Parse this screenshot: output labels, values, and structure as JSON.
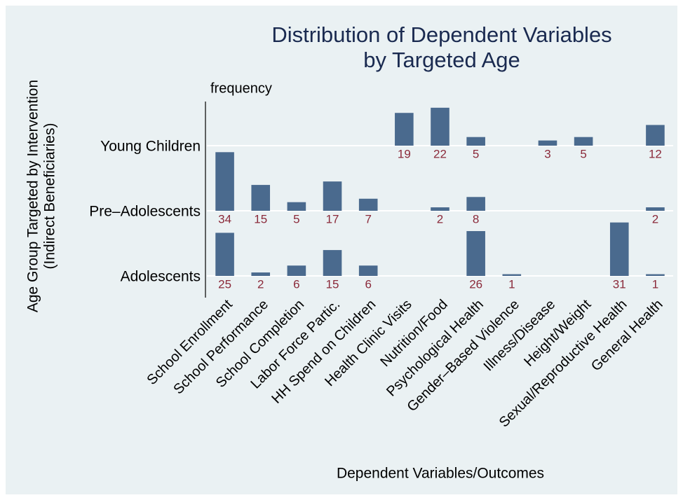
{
  "chart_data": {
    "type": "bar",
    "title": [
      "Distribution of Dependent Variables",
      "by Targeted Age"
    ],
    "subtitle": "frequency",
    "x_label": "Dependent Variables/Outcomes",
    "y_label": [
      "Age Group Targeted by Intervention",
      "(Indirect Beneficiaries)"
    ],
    "categories": [
      "School Enrollment",
      "School Performance",
      "School Completion",
      "Labor Force Partic.",
      "HH Spend on Children",
      "Health Clinic Visits",
      "Nutrition/Food",
      "Psychological Health",
      "Gender–Based Violence",
      "Illness/Disease",
      "Height/Weight",
      "Sexual/Reproductive Health",
      "General Health"
    ],
    "series": [
      {
        "name": "Young Children",
        "color": "#4a6a8e",
        "values": [
          null,
          null,
          null,
          null,
          null,
          19,
          22,
          5,
          null,
          3,
          5,
          null,
          12
        ]
      },
      {
        "name": "Pre–Adolescents",
        "color": "#4a6a8e",
        "values": [
          34,
          15,
          5,
          17,
          7,
          null,
          2,
          8,
          null,
          null,
          null,
          null,
          2
        ]
      },
      {
        "name": "Adolescents",
        "color": "#4a6a8e",
        "values": [
          25,
          2,
          6,
          15,
          6,
          null,
          null,
          26,
          1,
          null,
          null,
          31,
          1
        ]
      }
    ],
    "label_color": "#8b2a3a",
    "grid": true
  }
}
